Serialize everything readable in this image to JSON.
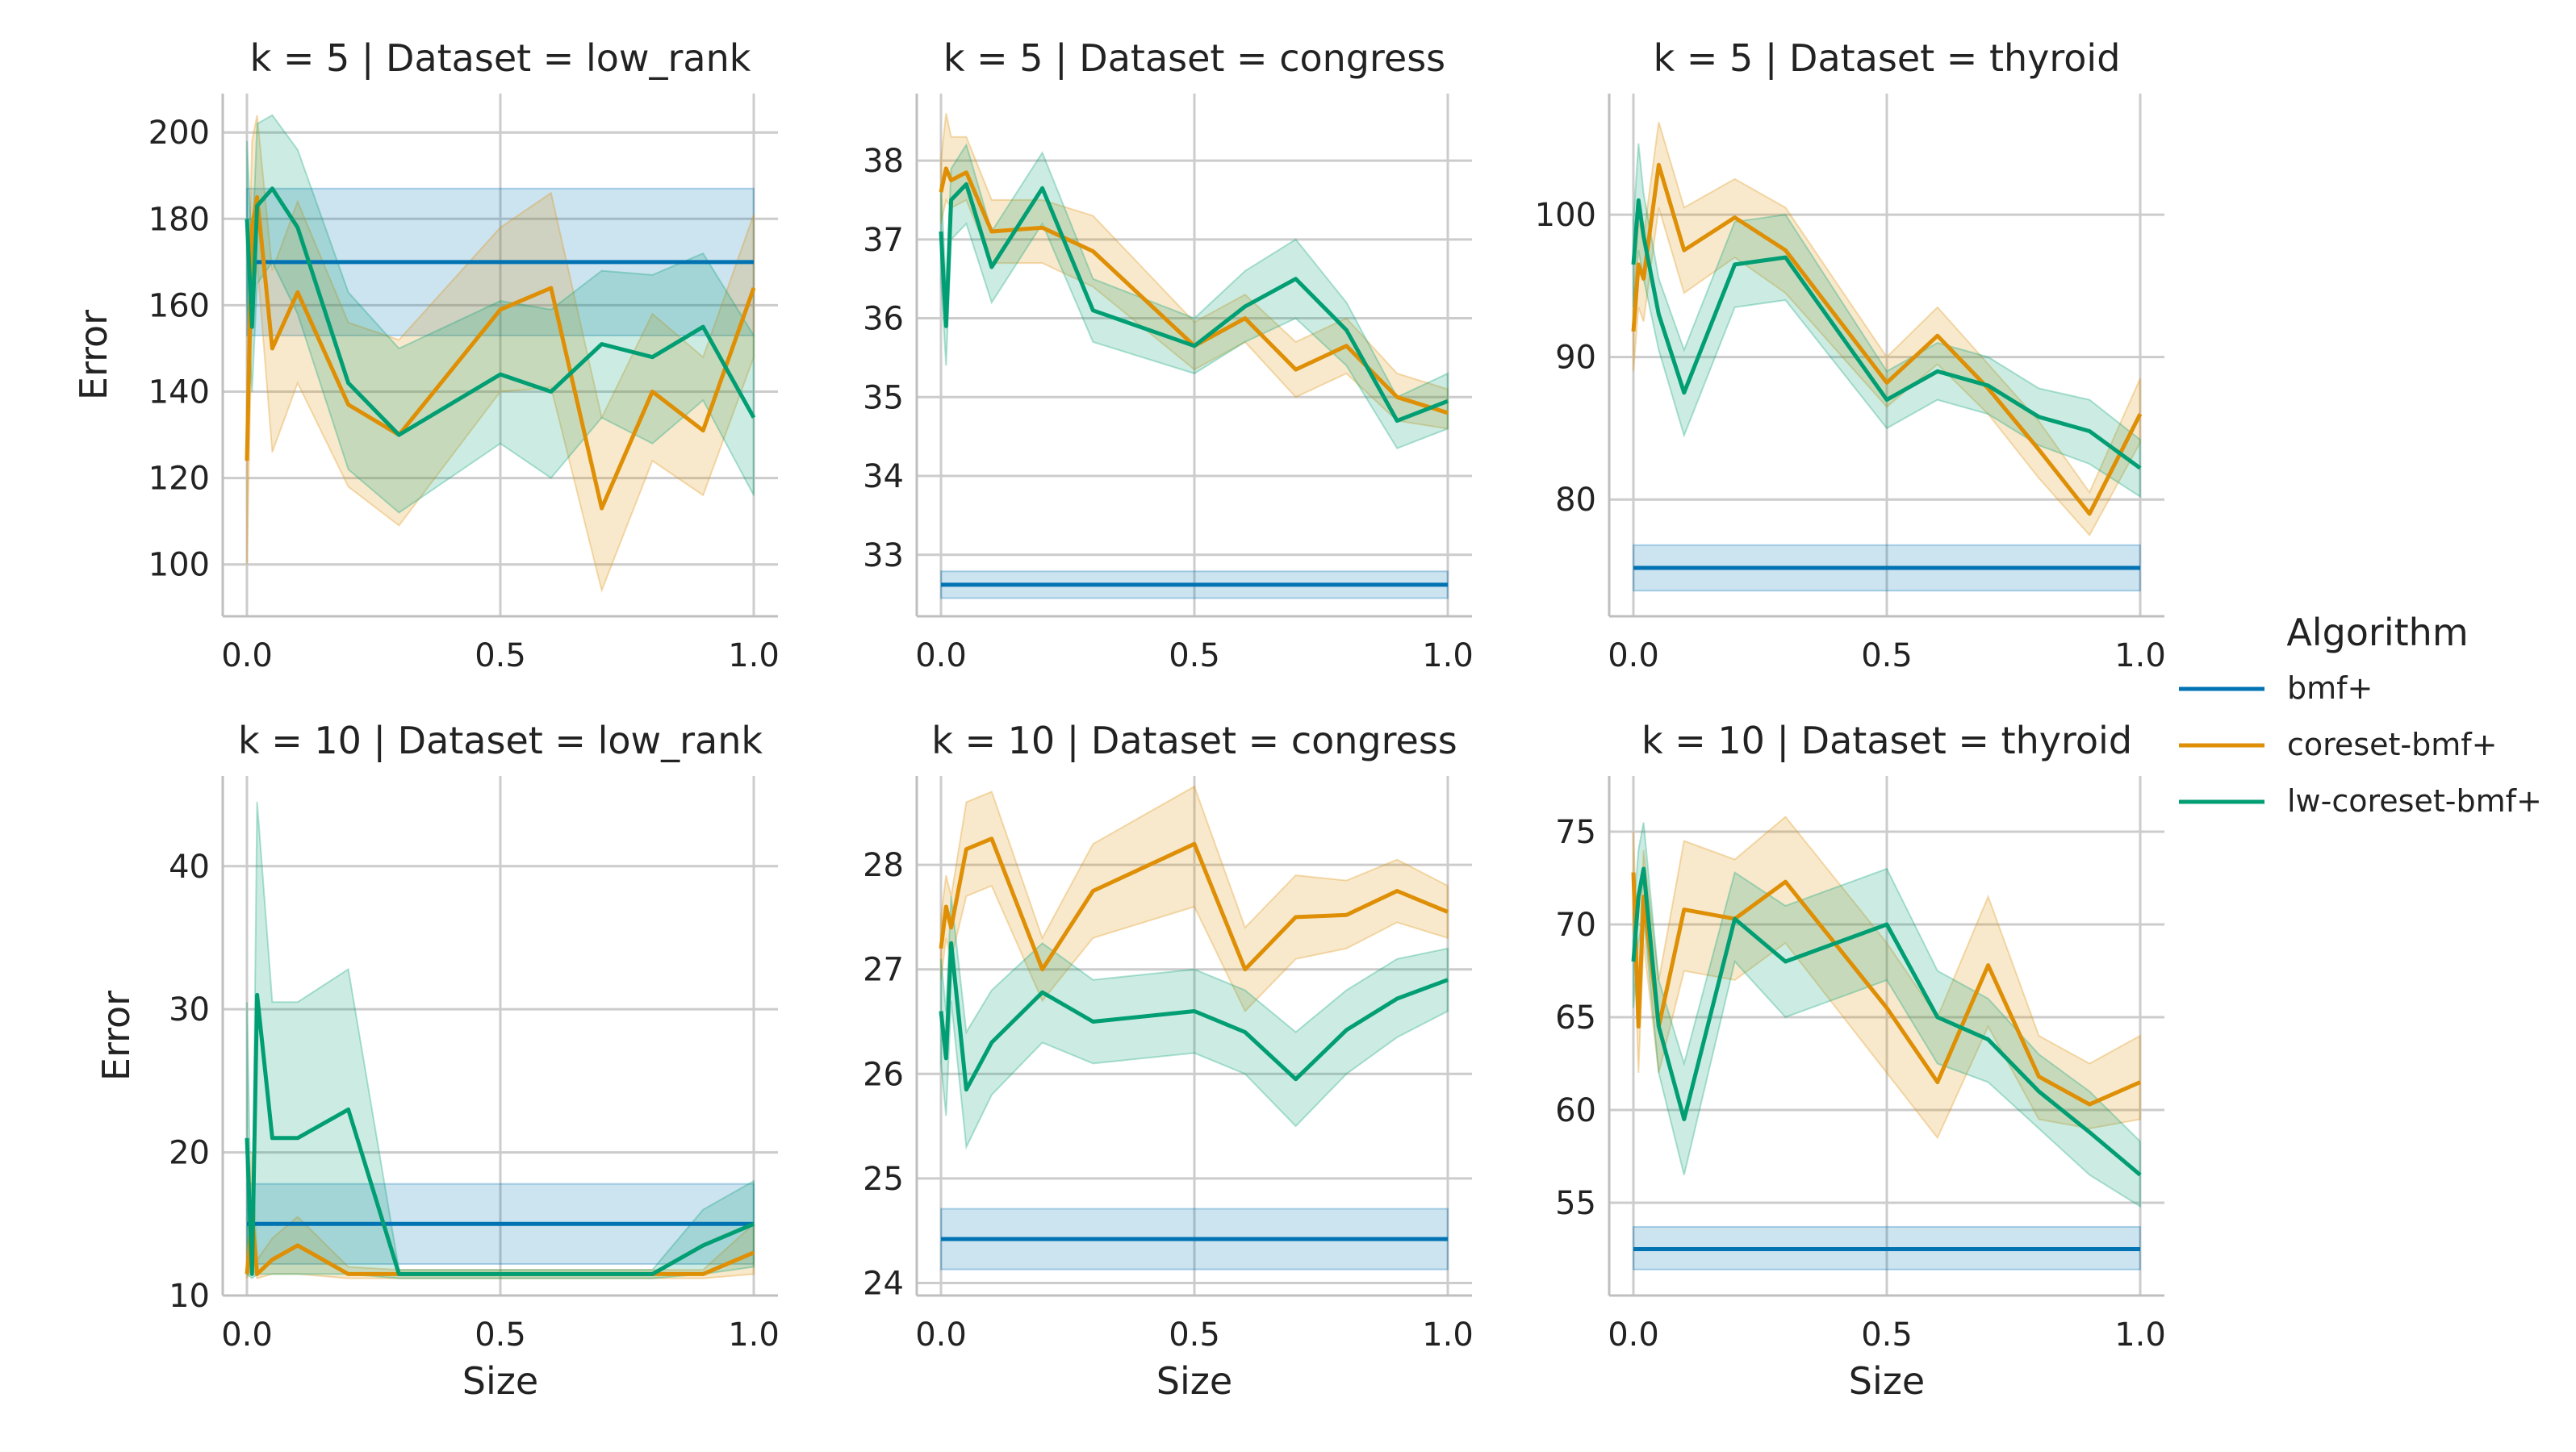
{
  "chart_data": {
    "type": "line",
    "xlabel": "Size",
    "ylabel": "Error",
    "legend": {
      "title": "Algorithm",
      "placement": "right",
      "entries": [
        {
          "name": "bmf+",
          "color": "#0173b2"
        },
        {
          "name": "coreset-bmf+",
          "color": "#de8f05"
        },
        {
          "name": "lw-coreset-bmf+",
          "color": "#029e73"
        }
      ]
    },
    "grid": true,
    "panels": [
      {
        "title": "k = 5 | Dataset = low_rank",
        "xlim": [
          -0.05,
          1.05
        ],
        "ylim": [
          88,
          209
        ],
        "xticks": [
          0.0,
          0.5,
          1.0
        ],
        "yticks": [
          100,
          120,
          140,
          160,
          180,
          200
        ],
        "show_ylabel": true,
        "show_xlabel": false,
        "series": [
          {
            "name": "bmf+",
            "x": [
              0,
              1
            ],
            "y": [
              170,
              170
            ],
            "lower": [
              153,
              153
            ],
            "upper": [
              187,
              187
            ]
          },
          {
            "name": "coreset-bmf+",
            "x": [
              0,
              0.01,
              0.02,
              0.05,
              0.1,
              0.2,
              0.3,
              0.5,
              0.6,
              0.7,
              0.8,
              0.9,
              1.0
            ],
            "y": [
              124,
              178,
              185,
              150,
              163,
              137,
              130,
              159,
              164,
              113,
              140,
              131,
              164
            ],
            "lower": [
              100,
              158,
              170,
              126,
              142,
              118,
              109,
              140,
              141,
              94,
              124,
              116,
              148
            ],
            "upper": [
              148,
              198,
              204,
              168,
              184,
              156,
              152,
              178,
              186,
              134,
              158,
              148,
              181
            ]
          },
          {
            "name": "lw-coreset-bmf+",
            "x": [
              0,
              0.01,
              0.02,
              0.05,
              0.1,
              0.2,
              0.3,
              0.5,
              0.6,
              0.7,
              0.8,
              0.9,
              1.0
            ],
            "y": [
              180,
              155,
              183,
              187,
              178,
              142,
              130,
              144,
              140,
              151,
              148,
              155,
              134
            ],
            "lower": [
              162,
              140,
              165,
              170,
              158,
              122,
              112,
              128,
              120,
              134,
              128,
              138,
              116
            ],
            "upper": [
              198,
              172,
              202,
              204,
              196,
              163,
              150,
              161,
              159,
              168,
              167,
              172,
              153
            ]
          }
        ]
      },
      {
        "title": "k = 5 | Dataset = congress",
        "xlim": [
          -0.05,
          1.05
        ],
        "ylim": [
          32.22,
          38.85
        ],
        "xticks": [
          0.0,
          0.5,
          1.0
        ],
        "yticks": [
          33,
          34,
          35,
          36,
          37,
          38
        ],
        "show_ylabel": false,
        "show_xlabel": false,
        "series": [
          {
            "name": "bmf+",
            "x": [
              0,
              1
            ],
            "y": [
              32.62,
              32.62
            ],
            "lower": [
              32.45,
              32.45
            ],
            "upper": [
              32.79,
              32.79
            ]
          },
          {
            "name": "coreset-bmf+",
            "x": [
              0,
              0.01,
              0.02,
              0.05,
              0.1,
              0.2,
              0.3,
              0.5,
              0.6,
              0.7,
              0.8,
              0.9,
              1.0
            ],
            "y": [
              37.6,
              37.9,
              37.75,
              37.85,
              37.1,
              37.15,
              36.85,
              35.65,
              36.0,
              35.35,
              35.65,
              35.0,
              34.8
            ],
            "lower": [
              37.2,
              37.5,
              37.4,
              37.5,
              36.7,
              36.7,
              36.4,
              35.35,
              35.7,
              35.0,
              35.3,
              34.7,
              34.6
            ],
            "upper": [
              38.0,
              38.6,
              38.3,
              38.3,
              37.5,
              37.5,
              37.3,
              35.95,
              36.3,
              35.7,
              36.0,
              35.3,
              35.1
            ]
          },
          {
            "name": "lw-coreset-bmf+",
            "x": [
              0,
              0.01,
              0.02,
              0.05,
              0.1,
              0.2,
              0.3,
              0.5,
              0.6,
              0.7,
              0.8,
              0.9,
              1.0
            ],
            "y": [
              37.1,
              35.9,
              37.5,
              37.7,
              36.65,
              37.65,
              36.1,
              35.65,
              36.15,
              36.5,
              35.85,
              34.7,
              34.95
            ],
            "lower": [
              36.5,
              35.4,
              37.0,
              37.2,
              36.2,
              37.2,
              35.7,
              35.3,
              35.7,
              36.0,
              35.4,
              34.35,
              34.6
            ],
            "upper": [
              37.7,
              36.4,
              37.9,
              38.2,
              37.1,
              38.1,
              36.5,
              36.0,
              36.6,
              37.0,
              36.2,
              35.0,
              35.3
            ]
          }
        ]
      },
      {
        "title": "k = 5 | Dataset = thyroid",
        "xlim": [
          -0.05,
          1.05
        ],
        "ylim": [
          71.8,
          108.5
        ],
        "xticks": [
          0.0,
          0.5,
          1.0
        ],
        "yticks": [
          80,
          90,
          100
        ],
        "show_ylabel": false,
        "show_xlabel": false,
        "series": [
          {
            "name": "bmf+",
            "x": [
              0,
              1
            ],
            "y": [
              75.2,
              75.2
            ],
            "lower": [
              73.6,
              73.6
            ],
            "upper": [
              76.8,
              76.8
            ]
          },
          {
            "name": "coreset-bmf+",
            "x": [
              0,
              0.01,
              0.02,
              0.05,
              0.1,
              0.2,
              0.3,
              0.5,
              0.6,
              0.7,
              0.8,
              0.9,
              1.0
            ],
            "y": [
              91.8,
              96.5,
              95.5,
              103.5,
              97.5,
              99.8,
              97.5,
              88.2,
              91.5,
              87.8,
              83.5,
              79.0,
              86.0
            ],
            "lower": [
              89.0,
              93.5,
              92.5,
              100.5,
              94.5,
              97.0,
              94.5,
              86.5,
              89.5,
              86.0,
              81.5,
              77.5,
              84.0
            ],
            "upper": [
              94.5,
              99.5,
              98.5,
              106.5,
              100.5,
              102.5,
              100.5,
              90.0,
              93.5,
              89.5,
              85.5,
              80.5,
              88.5
            ]
          },
          {
            "name": "lw-coreset-bmf+",
            "x": [
              0,
              0.01,
              0.02,
              0.05,
              0.1,
              0.2,
              0.3,
              0.5,
              0.6,
              0.7,
              0.8,
              0.9,
              1.0
            ],
            "y": [
              96.5,
              101.0,
              98.5,
              93.0,
              87.5,
              96.5,
              97.0,
              87.0,
              89.0,
              88.0,
              85.8,
              84.8,
              82.2
            ],
            "lower": [
              93.5,
              97.5,
              95.5,
              90.5,
              84.5,
              93.5,
              94.0,
              85.0,
              87.0,
              86.0,
              83.8,
              82.5,
              80.2
            ],
            "upper": [
              99.5,
              105.0,
              101.5,
              95.5,
              90.5,
              99.5,
              100.0,
              89.0,
              91.0,
              90.0,
              87.8,
              87.0,
              84.2
            ]
          }
        ]
      },
      {
        "title": "k = 10 | Dataset = low_rank",
        "xlim": [
          -0.05,
          1.05
        ],
        "ylim": [
          10.0,
          46.3
        ],
        "xticks": [
          0.0,
          0.5,
          1.0
        ],
        "yticks": [
          10,
          20,
          30,
          40
        ],
        "show_ylabel": true,
        "show_xlabel": true,
        "series": [
          {
            "name": "bmf+",
            "x": [
              0,
              1
            ],
            "y": [
              15.0,
              15.0
            ],
            "lower": [
              12.2,
              12.2
            ],
            "upper": [
              17.8,
              17.8
            ]
          },
          {
            "name": "coreset-bmf+",
            "x": [
              0,
              0.01,
              0.02,
              0.05,
              0.1,
              0.2,
              0.3,
              0.5,
              0.6,
              0.7,
              0.8,
              0.9,
              1.0
            ],
            "y": [
              11.5,
              15.5,
              11.5,
              12.5,
              13.5,
              11.5,
              11.5,
              11.5,
              11.5,
              11.5,
              11.5,
              11.5,
              13.0
            ],
            "lower": [
              11.2,
              12.0,
              11.2,
              11.5,
              11.5,
              11.2,
              11.2,
              11.2,
              11.2,
              11.2,
              11.2,
              11.2,
              11.5
            ],
            "upper": [
              12.0,
              20.0,
              12.5,
              14.0,
              15.5,
              12.0,
              11.8,
              11.8,
              11.8,
              11.8,
              11.8,
              11.8,
              15.0
            ]
          },
          {
            "name": "lw-coreset-bmf+",
            "x": [
              0,
              0.01,
              0.02,
              0.05,
              0.1,
              0.2,
              0.3,
              0.5,
              0.6,
              0.7,
              0.8,
              0.9,
              1.0
            ],
            "y": [
              21.0,
              11.5,
              31.0,
              21.0,
              21.0,
              23.0,
              11.5,
              11.5,
              11.5,
              11.5,
              11.5,
              13.5,
              15.0
            ],
            "lower": [
              11.5,
              11.2,
              11.5,
              11.5,
              11.5,
              11.5,
              11.2,
              11.2,
              11.2,
              11.2,
              11.2,
              11.5,
              12.0
            ],
            "upper": [
              30.5,
              12.0,
              44.5,
              30.5,
              30.5,
              32.8,
              11.8,
              11.8,
              11.8,
              11.8,
              11.8,
              16.0,
              18.0
            ]
          }
        ]
      },
      {
        "title": "k = 10 | Dataset = congress",
        "xlim": [
          -0.05,
          1.05
        ],
        "ylim": [
          23.88,
          28.85
        ],
        "xticks": [
          0.0,
          0.5,
          1.0
        ],
        "yticks": [
          24,
          25,
          26,
          27,
          28
        ],
        "show_ylabel": false,
        "show_xlabel": true,
        "series": [
          {
            "name": "bmf+",
            "x": [
              0,
              1
            ],
            "y": [
              24.42,
              24.42
            ],
            "lower": [
              24.13,
              24.13
            ],
            "upper": [
              24.71,
              24.71
            ]
          },
          {
            "name": "coreset-bmf+",
            "x": [
              0,
              0.01,
              0.02,
              0.05,
              0.1,
              0.2,
              0.3,
              0.5,
              0.6,
              0.7,
              0.8,
              0.9,
              1.0
            ],
            "y": [
              27.2,
              27.6,
              27.4,
              28.15,
              28.25,
              27.0,
              27.75,
              28.2,
              27.0,
              27.5,
              27.52,
              27.75,
              27.55
            ],
            "lower": [
              26.9,
              27.3,
              27.1,
              27.7,
              27.8,
              26.7,
              27.3,
              27.6,
              26.6,
              27.1,
              27.2,
              27.45,
              27.3
            ],
            "upper": [
              27.5,
              27.9,
              27.7,
              28.6,
              28.7,
              27.3,
              28.2,
              28.75,
              27.4,
              27.9,
              27.85,
              28.05,
              27.8
            ]
          },
          {
            "name": "lw-coreset-bmf+",
            "x": [
              0,
              0.01,
              0.02,
              0.05,
              0.1,
              0.2,
              0.3,
              0.5,
              0.6,
              0.7,
              0.8,
              0.9,
              1.0
            ],
            "y": [
              26.6,
              26.15,
              27.25,
              25.85,
              26.3,
              26.78,
              26.5,
              26.6,
              26.4,
              25.95,
              26.42,
              26.72,
              26.9
            ],
            "lower": [
              26.1,
              25.6,
              26.7,
              25.3,
              25.8,
              26.3,
              26.1,
              26.2,
              26.0,
              25.5,
              26.0,
              26.35,
              26.6
            ],
            "upper": [
              27.1,
              26.6,
              27.7,
              26.4,
              26.8,
              27.25,
              26.9,
              27.0,
              26.8,
              26.4,
              26.8,
              27.1,
              27.2
            ]
          }
        ]
      },
      {
        "title": "k = 10 | Dataset = thyroid",
        "xlim": [
          -0.05,
          1.05
        ],
        "ylim": [
          50.0,
          78.0
        ],
        "xticks": [
          0.0,
          0.5,
          1.0
        ],
        "yticks": [
          55,
          60,
          65,
          70,
          75
        ],
        "show_ylabel": false,
        "show_xlabel": true,
        "series": [
          {
            "name": "bmf+",
            "x": [
              0,
              1
            ],
            "y": [
              52.5,
              52.5
            ],
            "lower": [
              51.4,
              51.4
            ],
            "upper": [
              53.7,
              53.7
            ]
          },
          {
            "name": "coreset-bmf+",
            "x": [
              0,
              0.01,
              0.02,
              0.05,
              0.1,
              0.2,
              0.3,
              0.5,
              0.6,
              0.7,
              0.8,
              0.9,
              1.0
            ],
            "y": [
              72.8,
              64.5,
              71.5,
              64.5,
              70.8,
              70.3,
              72.3,
              65.5,
              61.5,
              67.8,
              61.8,
              60.3,
              61.5
            ],
            "lower": [
              70.5,
              62.0,
              69.0,
              62.0,
              67.5,
              67.0,
              69.0,
              62.0,
              58.5,
              64.5,
              59.5,
              59.0,
              59.5
            ],
            "upper": [
              75.0,
              67.0,
              74.0,
              67.0,
              74.5,
              73.5,
              75.8,
              69.0,
              65.0,
              71.5,
              64.0,
              62.5,
              64.0
            ]
          },
          {
            "name": "lw-coreset-bmf+",
            "x": [
              0,
              0.01,
              0.02,
              0.05,
              0.1,
              0.2,
              0.3,
              0.5,
              0.6,
              0.7,
              0.8,
              0.9,
              1.0
            ],
            "y": [
              68.0,
              71.5,
              73.0,
              64.5,
              59.5,
              70.3,
              68.0,
              70.0,
              65.0,
              63.8,
              61.0,
              58.8,
              56.5
            ],
            "lower": [
              65.5,
              69.0,
              70.5,
              62.0,
              56.5,
              68.0,
              65.0,
              67.0,
              62.5,
              61.5,
              59.0,
              56.5,
              54.8
            ],
            "upper": [
              70.5,
              74.0,
              75.5,
              67.0,
              62.5,
              72.8,
              71.0,
              73.0,
              67.5,
              66.0,
              63.0,
              61.0,
              58.3
            ]
          }
        ]
      }
    ]
  }
}
